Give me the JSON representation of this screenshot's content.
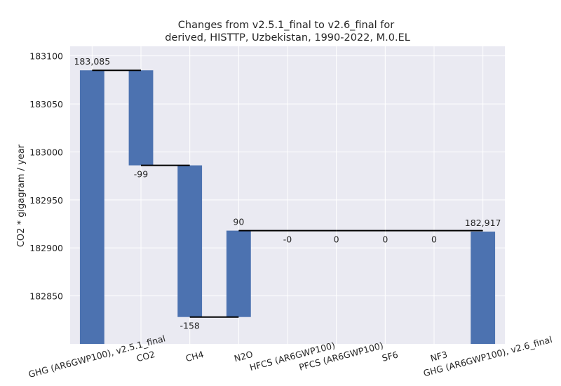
{
  "chart_data": {
    "type": "waterfall",
    "title_lines": [
      "Changes from v2.5.1_final to v2.6_final for",
      "derived, HISTTP, Uzbekistan, 1990-2022, M.0.EL"
    ],
    "xlabel": "",
    "ylabel": "CO2 * gigagram / year",
    "ylim": [
      182800,
      183110
    ],
    "yticks": [
      182850,
      182900,
      182950,
      183000,
      183050,
      183100
    ],
    "grid": true,
    "colors": {
      "bar": "#4c72b0",
      "background": "#eaeaf2",
      "grid": "#ffffff",
      "connector": "#000000"
    },
    "categories": [
      "GHG (AR6GWP100), v2.5.1_final",
      "CO2",
      "CH4",
      "N2O",
      "HFCS (AR6GWP100)",
      "PFCS (AR6GWP100)",
      "SF6",
      "NF3",
      "GHG (AR6GWP100), v2.6_final"
    ],
    "bars": [
      {
        "kind": "total",
        "start": 182800,
        "end": 183085,
        "label": "183,085"
      },
      {
        "kind": "delta",
        "start": 183085,
        "end": 182986,
        "label": "-99"
      },
      {
        "kind": "delta",
        "start": 182986,
        "end": 182828,
        "label": "-158"
      },
      {
        "kind": "delta",
        "start": 182828,
        "end": 182918,
        "label": "90"
      },
      {
        "kind": "delta",
        "start": 182918,
        "end": 182918,
        "label": "-0"
      },
      {
        "kind": "delta",
        "start": 182918,
        "end": 182918,
        "label": "0"
      },
      {
        "kind": "delta",
        "start": 182918,
        "end": 182918,
        "label": "0"
      },
      {
        "kind": "delta",
        "start": 182918,
        "end": 182918,
        "label": "0"
      },
      {
        "kind": "total",
        "start": 182800,
        "end": 182917,
        "label": "182,917"
      }
    ]
  }
}
